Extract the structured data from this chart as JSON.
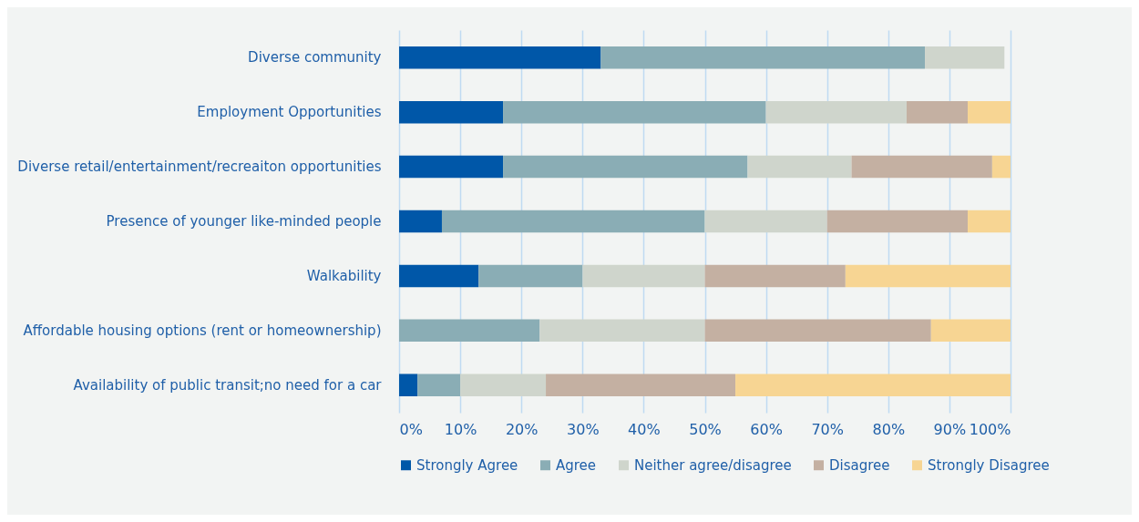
{
  "chart_data": {
    "type": "bar",
    "orientation": "horizontal",
    "stacked": true,
    "categories": [
      "Diverse community",
      "Employment Opportunities",
      "Diverse retail/entertainment/recreaiton opportunities",
      "Presence of younger like-minded people",
      "Walkability",
      "Affordable housing options (rent or homeownership)",
      "Availability of public transit;no need for a car"
    ],
    "series": [
      {
        "name": "Strongly Agree",
        "color": "#0057a8",
        "values": [
          33,
          17,
          17,
          7,
          13,
          0,
          3
        ]
      },
      {
        "name": "Agree",
        "color": "#8aadb5",
        "values": [
          53,
          43,
          40,
          43,
          17,
          23,
          7
        ]
      },
      {
        "name": "Neither agree/disagree",
        "color": "#cfd5cc",
        "values": [
          13,
          23,
          17,
          20,
          20,
          27,
          14
        ]
      },
      {
        "name": "Disagree",
        "color": "#c4b0a2",
        "values": [
          0,
          10,
          23,
          23,
          23,
          37,
          31
        ]
      },
      {
        "name": "Strongly Disagree",
        "color": "#f7d593",
        "values": [
          0,
          7,
          3,
          7,
          27,
          13,
          45
        ]
      }
    ],
    "xlim": [
      0,
      100
    ],
    "xticks": [
      {
        "value": 0,
        "label": "0%"
      },
      {
        "value": 10,
        "label": "10%"
      },
      {
        "value": 20,
        "label": "20%"
      },
      {
        "value": 30,
        "label": "30%"
      },
      {
        "value": 40,
        "label": "40%"
      },
      {
        "value": 50,
        "label": "50%"
      },
      {
        "value": 60,
        "label": "60%"
      },
      {
        "value": 70,
        "label": "70%"
      },
      {
        "value": 80,
        "label": "80%"
      },
      {
        "value": 90,
        "label": "90%"
      },
      {
        "value": 100,
        "label": "100%"
      }
    ],
    "grid": "x",
    "legend": "bottom"
  }
}
